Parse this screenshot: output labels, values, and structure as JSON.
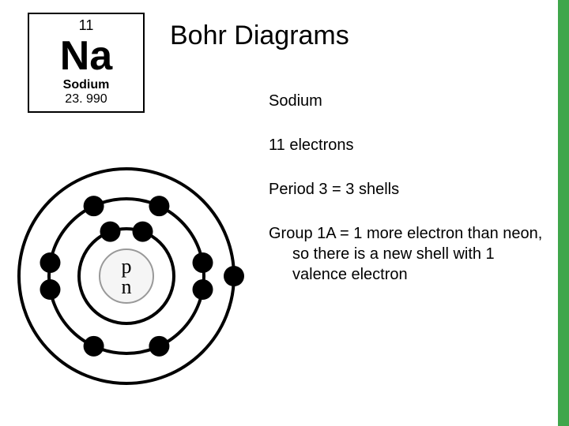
{
  "accent_color": "#3fa64b",
  "title": "Bohr Diagrams",
  "element": {
    "atomic_number": "11",
    "symbol": "Na",
    "name": "Sodium",
    "mass": "23. 990"
  },
  "lines": {
    "l1": "Sodium",
    "l2": "11 electrons",
    "l3": "Period 3 = 3 shells",
    "l4": "Group 1A = 1 more electron than neon, so there is a new shell with 1 valence electron"
  },
  "bohr": {
    "nucleus_label_p": "p",
    "nucleus_label_n": "n",
    "nucleus_fill": "#f5f5f5",
    "nucleus_stroke": "#999999",
    "ring_stroke": "#000000",
    "electron_fill": "#000000",
    "nucleus_r": 34,
    "ring_radii": [
      60,
      98,
      136
    ],
    "electron_r": 13,
    "electrons": [
      {
        "shell": 0,
        "angle": 70
      },
      {
        "shell": 0,
        "angle": 110
      },
      {
        "shell": 1,
        "angle": 65
      },
      {
        "shell": 1,
        "angle": 115
      },
      {
        "shell": 1,
        "angle": 170
      },
      {
        "shell": 1,
        "angle": 190
      },
      {
        "shell": 1,
        "angle": 245
      },
      {
        "shell": 1,
        "angle": 295
      },
      {
        "shell": 1,
        "angle": 350
      },
      {
        "shell": 1,
        "angle": 10
      },
      {
        "shell": 2,
        "angle": 0
      }
    ]
  }
}
